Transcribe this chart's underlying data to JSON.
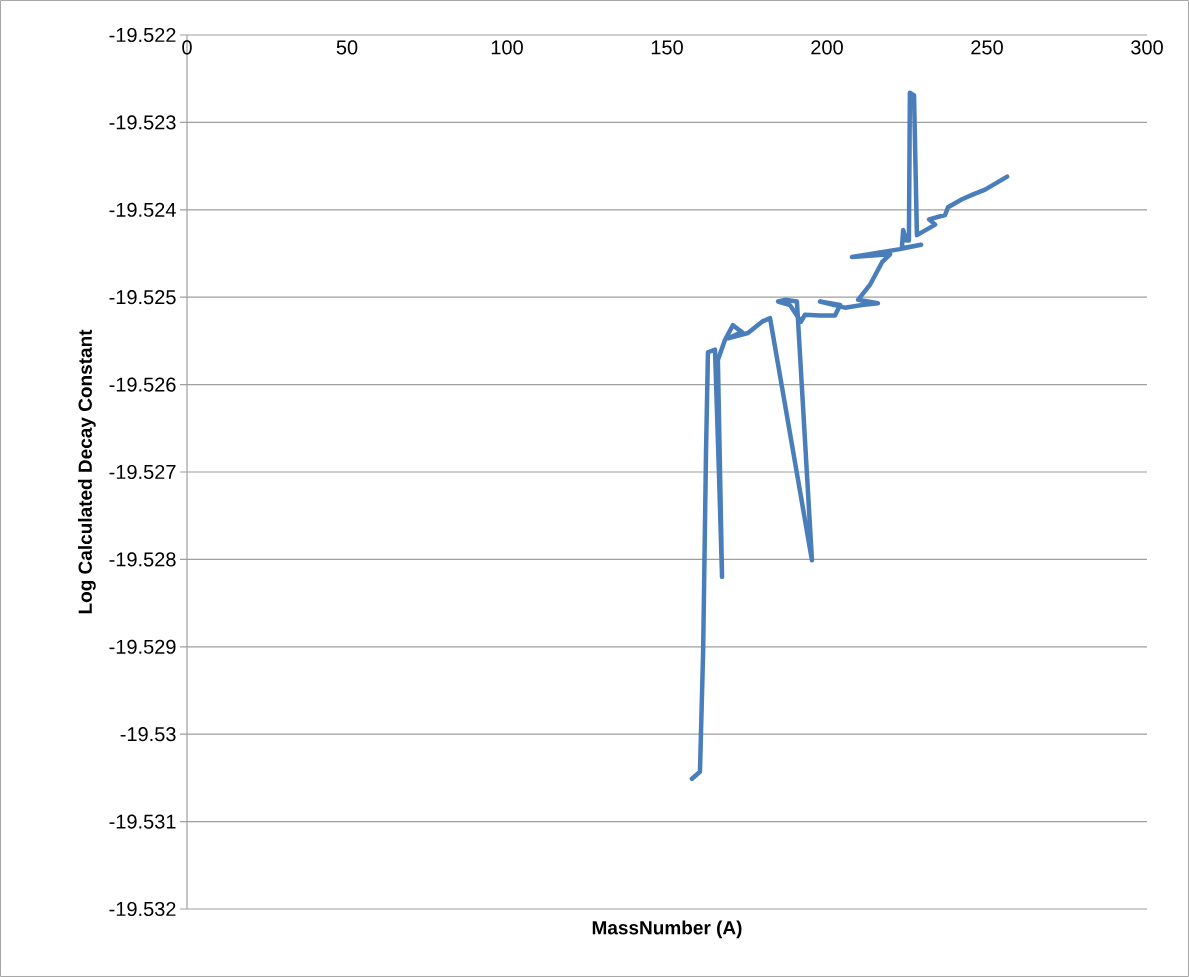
{
  "chart_data": {
    "type": "line",
    "xlabel": "MassNumber (A)",
    "ylabel": "Log Calculated Decay Constant",
    "color": "#4a7ebb",
    "grid": "y",
    "xlim": [
      0,
      300
    ],
    "xticks": [
      0,
      50,
      100,
      150,
      200,
      250,
      300
    ],
    "ylim": [
      -19.532,
      -19.522
    ],
    "yticks": [
      -19.532,
      -19.531,
      -19.53,
      -19.529,
      -19.528,
      -19.527,
      -19.526,
      -19.525,
      -19.524,
      -19.523,
      -19.522
    ],
    "x": [
      157.8,
      160.3,
      161.3,
      162.2,
      162.8,
      165.0,
      166.3,
      167.2,
      165.9,
      168.1,
      170.6,
      173.4,
      169.1,
      175.3,
      179.7,
      182.2,
      195.3,
      190.6,
      186.9,
      184.7,
      188.4,
      191.9,
      193.1,
      197.8,
      202.5,
      204.1,
      197.8,
      205.6,
      210.9,
      215.9,
      209.7,
      213.4,
      217.2,
      219.7,
      207.8,
      222.8,
      229.4,
      223.4,
      223.8,
      224.7,
      225.6,
      225.9,
      227.2,
      228.1,
      233.8,
      231.9,
      236.9,
      237.8,
      242.2,
      245.3,
      249.4,
      256.3
    ],
    "values": [
      -19.53051,
      -19.53043,
      -19.52904,
      -19.52675,
      -19.52563,
      -19.5256,
      -19.52709,
      -19.5282,
      -19.52572,
      -19.52549,
      -19.52532,
      -19.5254,
      -19.52547,
      -19.52541,
      -19.52528,
      -19.52524,
      -19.52801,
      -19.52505,
      -19.52503,
      -19.52505,
      -19.52509,
      -19.52528,
      -19.5252,
      -19.52521,
      -19.52521,
      -19.52509,
      -19.52505,
      -19.52512,
      -19.52509,
      -19.52507,
      -19.52503,
      -19.52486,
      -19.5246,
      -19.52451,
      -19.52454,
      -19.52445,
      -19.5244,
      -19.52444,
      -19.52423,
      -19.52435,
      -19.52435,
      -19.52266,
      -19.52269,
      -19.52429,
      -19.52417,
      -19.52411,
      -19.52406,
      -19.52397,
      -19.52388,
      -19.52383,
      -19.52377,
      -19.52362
    ]
  }
}
